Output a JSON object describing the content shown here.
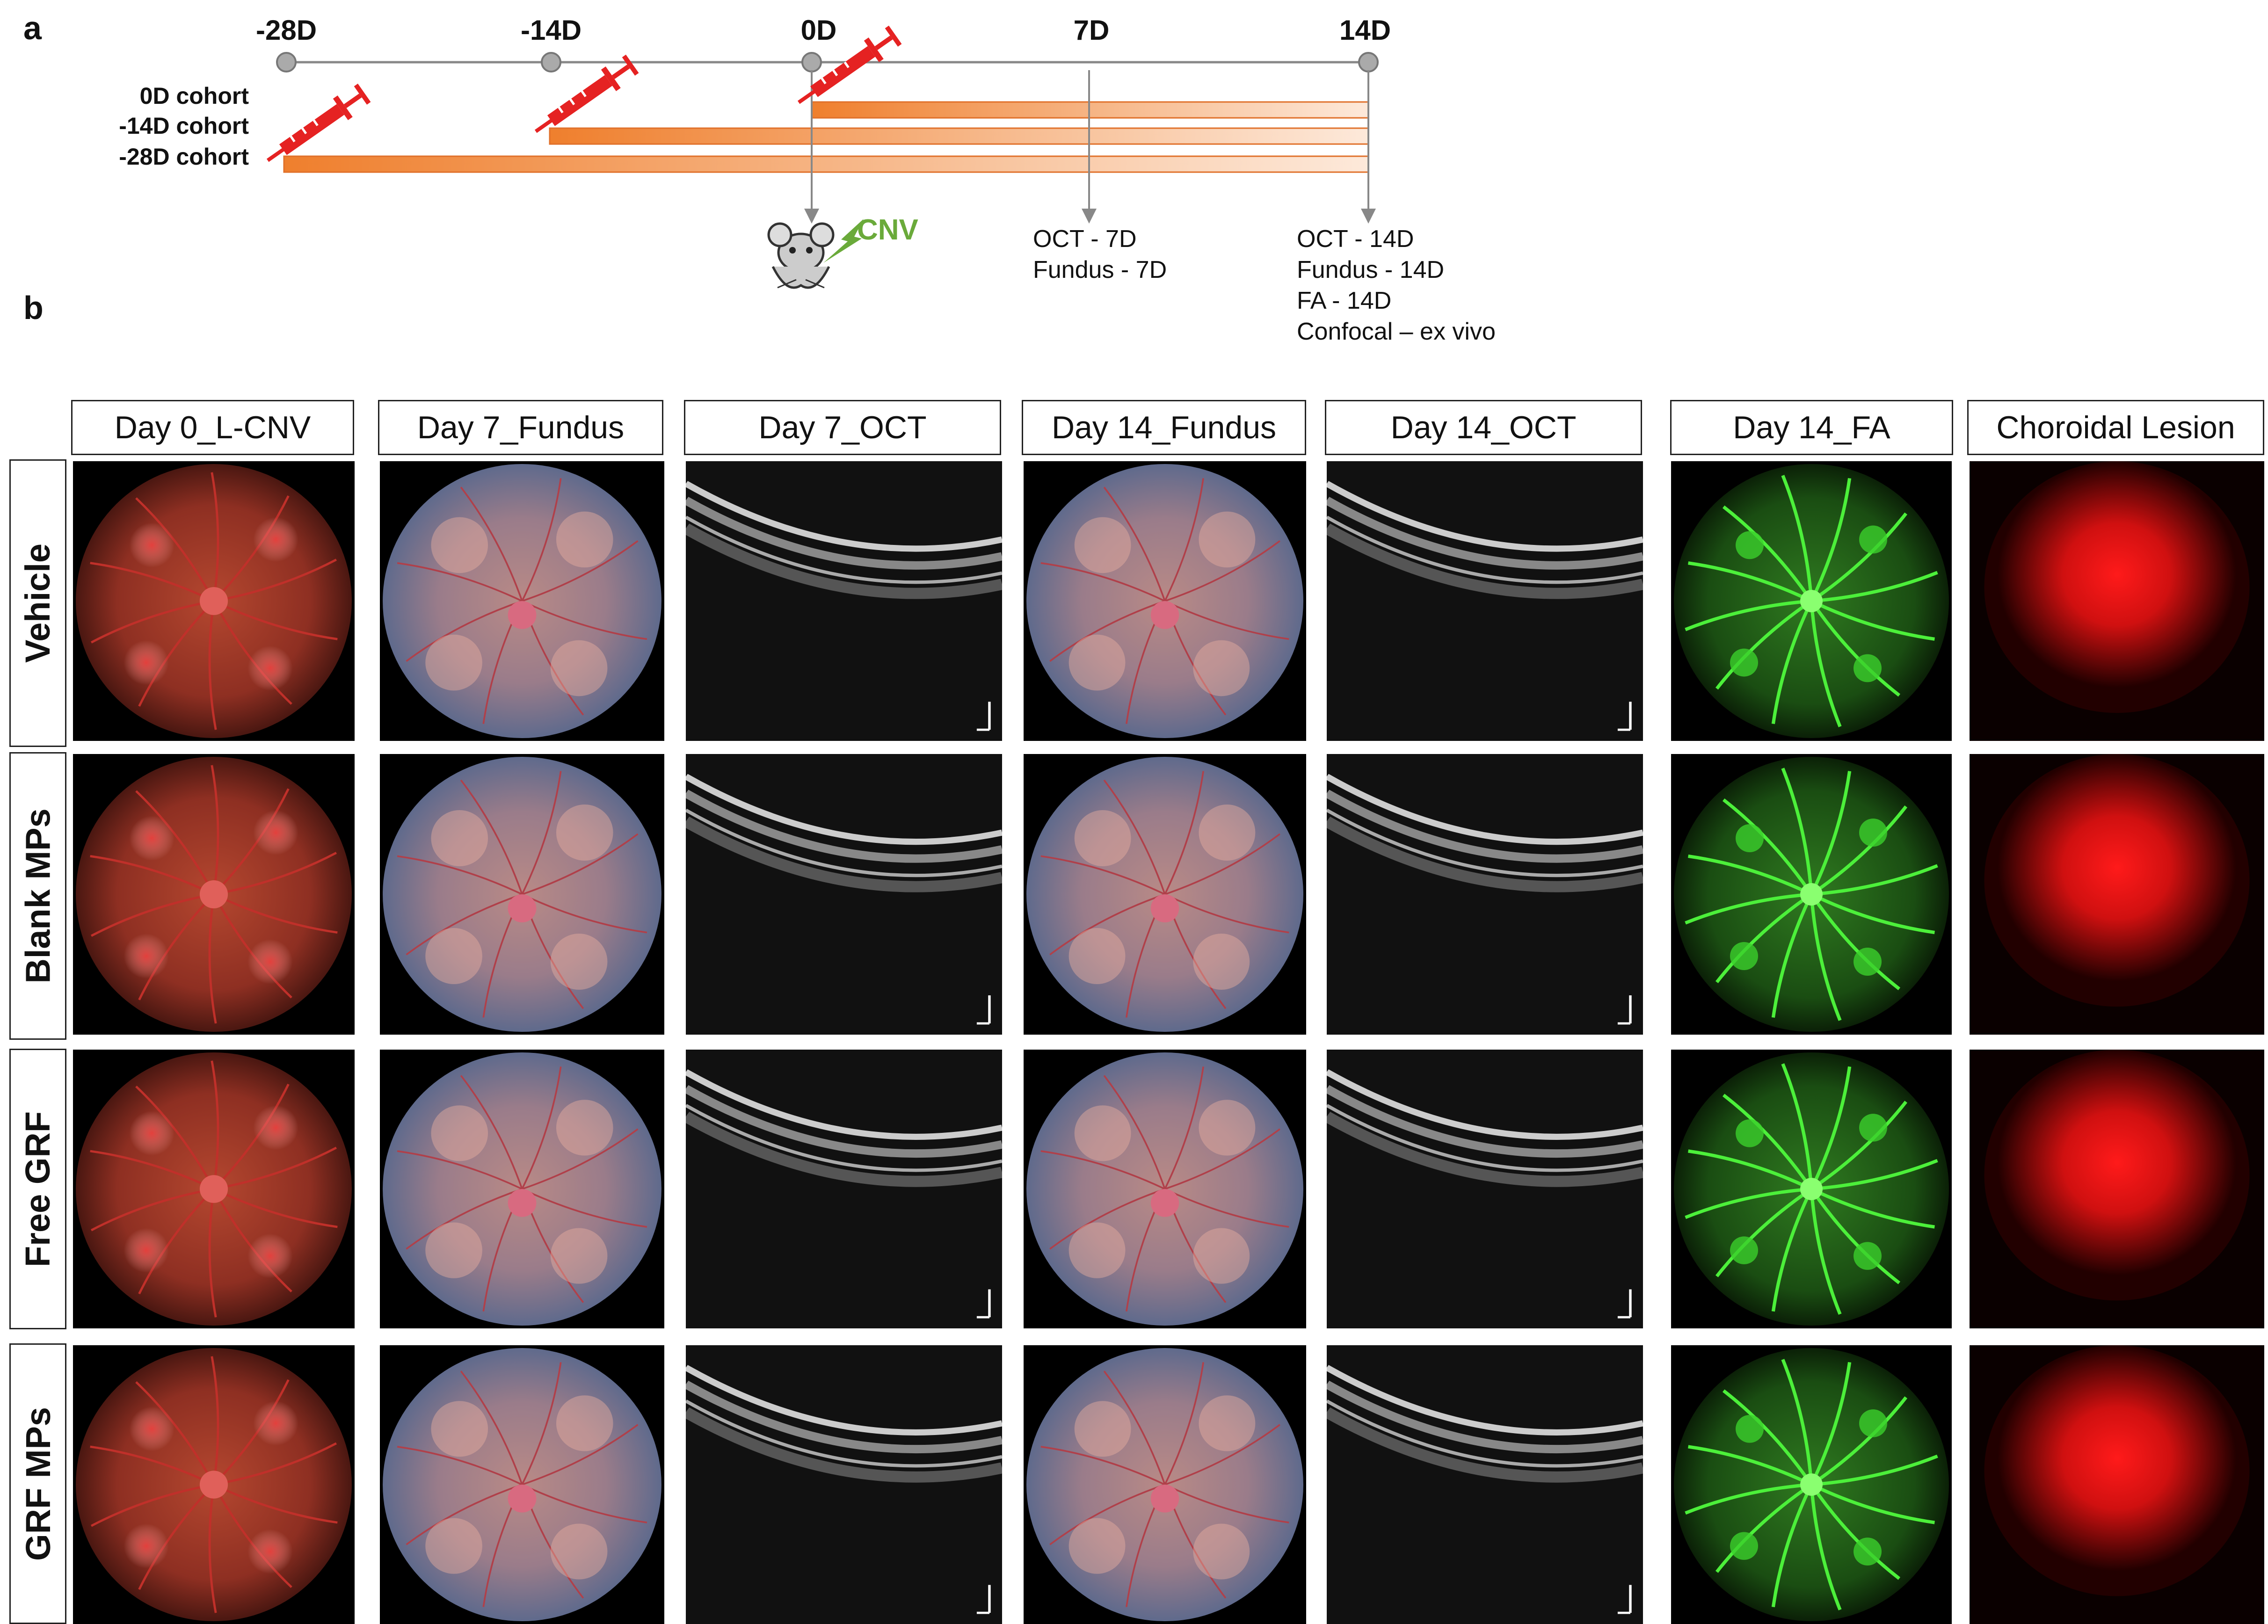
{
  "panel_a": {
    "letter": "a",
    "ticks": [
      "-28D",
      "-14D",
      "0D",
      "7D",
      "14D"
    ],
    "cohorts": [
      "0D cohort",
      "-14D cohort",
      "-28D cohort"
    ],
    "cnv_label": "CNV",
    "ann_7d": [
      "OCT - 7D",
      "Fundus - 7D"
    ],
    "ann_14d": [
      "OCT - 14D",
      "Fundus - 14D",
      "FA - 14D",
      "Confocal – ex vivo"
    ],
    "colors": {
      "bar": "#f08a3c",
      "syringe": "#e52222",
      "cnv": "#6aaa3a",
      "axis": "#888888"
    }
  },
  "panel_b": {
    "letter": "b",
    "columns": [
      "Day 0_L-CNV",
      "Day 7_Fundus",
      "Day 7_OCT",
      "Day 14_Fundus",
      "Day 14_OCT",
      "Day 14_FA",
      "Choroidal Lesion"
    ],
    "rows": [
      "Vehicle",
      "Blank MPs",
      "Free GRF",
      "GRF MPs"
    ],
    "image_types": [
      "fundus-red",
      "fundus-color",
      "oct",
      "fundus-color",
      "oct",
      "fa-green",
      "confocal-red"
    ]
  }
}
